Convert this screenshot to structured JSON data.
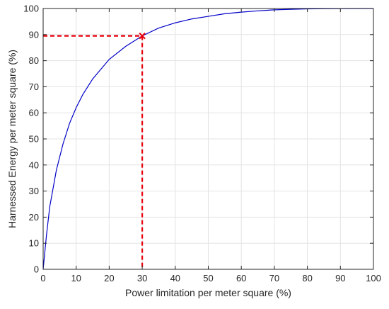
{
  "chart_data": {
    "type": "line",
    "title": "",
    "xlabel": "Power limitation per meter square (%)",
    "ylabel": "Harnessed Energy per meter square (%)",
    "xlim": [
      0,
      100
    ],
    "ylim": [
      0,
      100
    ],
    "xticks": [
      0,
      10,
      20,
      30,
      40,
      50,
      60,
      70,
      80,
      90,
      100
    ],
    "yticks": [
      0,
      10,
      20,
      30,
      40,
      50,
      60,
      70,
      80,
      90,
      100
    ],
    "grid": true,
    "series": [
      {
        "color": "#0000c8",
        "x": [
          0,
          1,
          2,
          3,
          4,
          5,
          6,
          8,
          10,
          12,
          15,
          20,
          25,
          30,
          35,
          40,
          45,
          50,
          55,
          60,
          65,
          70,
          75,
          80,
          85,
          90,
          95,
          100
        ],
        "y": [
          0,
          13,
          24,
          31,
          38,
          43,
          48,
          56,
          62,
          67,
          73,
          80.5,
          85.5,
          89.5,
          92.5,
          94.5,
          96,
          97,
          98,
          98.6,
          99.1,
          99.5,
          99.7,
          99.85,
          99.93,
          99.97,
          100,
          100
        ]
      }
    ],
    "annotations": [
      {
        "kind": "crosshair",
        "x": 30,
        "y": 89.5,
        "color": "#e8000b",
        "marker": "x",
        "linestyle": "dashed"
      }
    ]
  }
}
